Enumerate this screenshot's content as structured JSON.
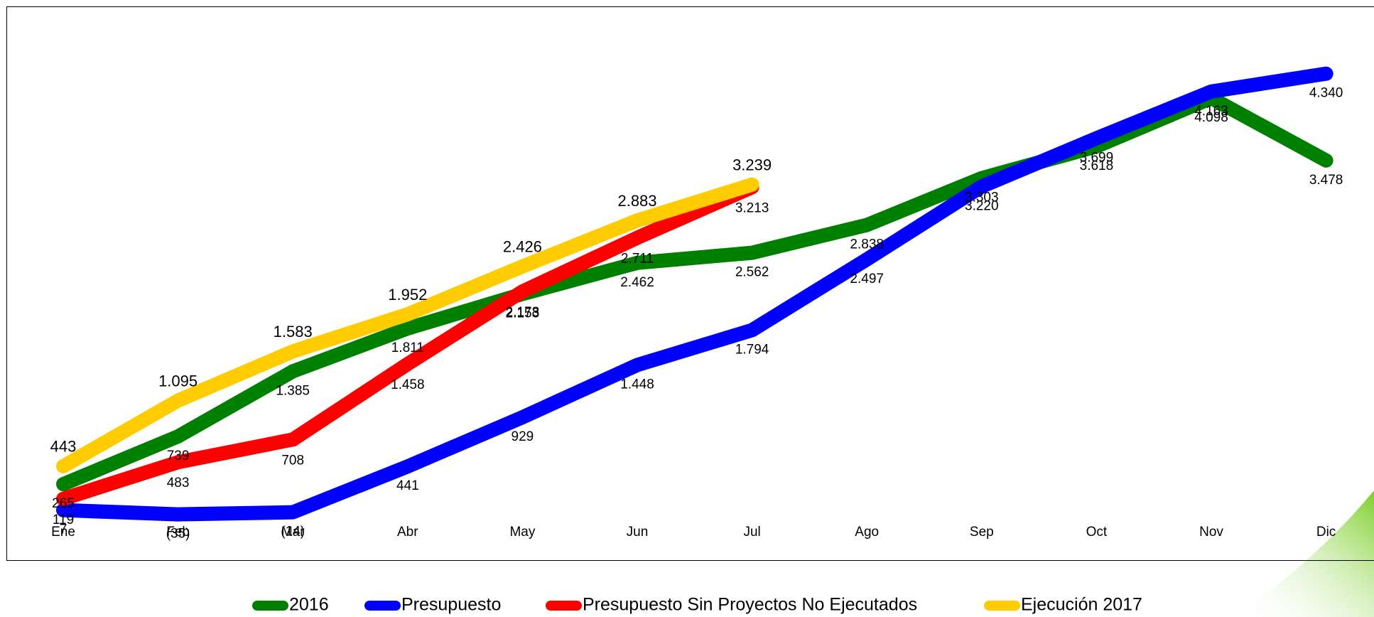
{
  "chart_data": {
    "type": "line",
    "categories": [
      "Ene",
      "Feb",
      "Mar",
      "Abr",
      "May",
      "Jun",
      "Jul",
      "Ago",
      "Sep",
      "Oct",
      "Nov",
      "Dic"
    ],
    "ylim": [
      -200,
      4500
    ],
    "legend": "bottom",
    "series": [
      {
        "name": "2016",
        "color": "#008000",
        "values": [
          265,
          739,
          1385,
          1811,
          2153,
          2462,
          2562,
          2838,
          3303,
          3618,
          4098,
          3478
        ],
        "value_labels": [
          "265",
          "739",
          "1.385",
          "1.811",
          "2.153",
          "2.462",
          "2.562",
          "2.838",
          "3.303",
          "3.618",
          "4.098",
          "3.478"
        ]
      },
      {
        "name": "Presupuesto",
        "color": "#0000ff",
        "values": [
          7,
          -35,
          -14,
          441,
          929,
          1448,
          1794,
          2497,
          3220,
          3699,
          4163,
          4340
        ],
        "value_labels": [
          "7",
          "(35)",
          "(14)",
          "441",
          "929",
          "1.448",
          "1.794",
          "2.497",
          "3.220",
          "3.699",
          "4.163",
          "4.340"
        ]
      },
      {
        "name": "Presupuesto Sin Proyectos No Ejecutados",
        "color": "#ff0000",
        "values": [
          119,
          483,
          708,
          1458,
          2178,
          2711,
          3213,
          null,
          null,
          null,
          null,
          null
        ],
        "value_labels": [
          "119",
          "483",
          "708",
          "1.458",
          "2.178",
          "2.711",
          "3.213",
          null,
          null,
          null,
          null,
          null
        ]
      },
      {
        "name": "Ejecución 2017",
        "color": "#ffcc00",
        "values": [
          443,
          1095,
          1583,
          1952,
          2426,
          2883,
          3239,
          null,
          null,
          null,
          null,
          null
        ],
        "value_labels": [
          "443",
          "1.095",
          "1.583",
          "1.952",
          "2.426",
          "2.883",
          "3.239",
          null,
          null,
          null,
          null,
          null
        ]
      }
    ]
  }
}
